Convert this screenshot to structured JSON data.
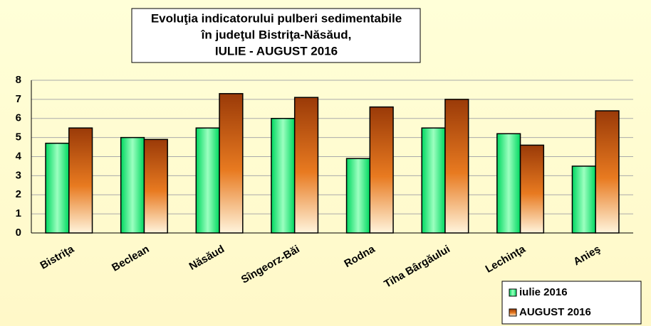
{
  "chart_data": {
    "type": "bar",
    "title": [
      "Evoluţia indicatorului pulberi sedimentabile",
      "în judeţul Bistriţa-Năsăud,",
      "IULIE - AUGUST 2016"
    ],
    "categories": [
      "Bistriţa",
      "Beclean",
      "Năsăud",
      "Sîngeorz-Băi",
      "Rodna",
      "Tiha Bârgăului",
      "Lechinţa",
      "Anieş"
    ],
    "series": [
      {
        "name": "iulie 2016",
        "color": "#00d860",
        "values": [
          4.7,
          5.0,
          5.5,
          6.0,
          3.9,
          5.5,
          5.2,
          3.5
        ]
      },
      {
        "name": "AUGUST 2016",
        "color": "#9a3a08",
        "values": [
          5.5,
          4.9,
          7.3,
          7.1,
          6.6,
          7.0,
          4.6,
          6.4
        ]
      }
    ],
    "ylim": [
      0,
      8
    ],
    "yticks": [
      0,
      1,
      2,
      3,
      4,
      5,
      6,
      7,
      8
    ],
    "grid": true,
    "legend": "bottom-right"
  }
}
